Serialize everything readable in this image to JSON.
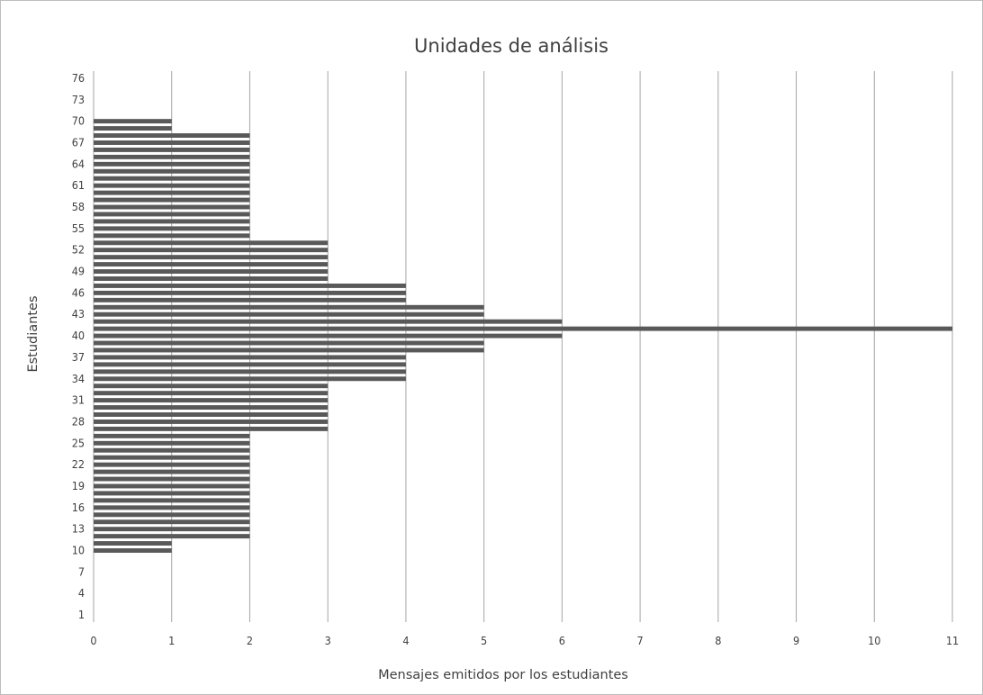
{
  "chart_data": {
    "type": "bar",
    "orientation": "horizontal",
    "title": "Unidades de análisis",
    "xlabel": "Mensajes emitidos por los estudiantes",
    "ylabel": "Estudiantes",
    "xlim": [
      0,
      11
    ],
    "ylim": [
      0,
      77
    ],
    "x_ticks": [
      "0",
      "1",
      "2",
      "3",
      "4",
      "5",
      "6",
      "7",
      "8",
      "9",
      "10",
      "11"
    ],
    "y_ticks": [
      "1",
      "4",
      "7",
      "10",
      "13",
      "16",
      "19",
      "22",
      "25",
      "28",
      "31",
      "34",
      "37",
      "40",
      "43",
      "46",
      "49",
      "52",
      "55",
      "58",
      "61",
      "64",
      "67",
      "70",
      "73",
      "76"
    ],
    "grid": "vertical",
    "legend": "none",
    "bar_color": "#595959",
    "grid_color": "#a6a6a6",
    "categories": [
      10,
      11,
      12,
      13,
      14,
      15,
      16,
      17,
      18,
      19,
      20,
      21,
      22,
      23,
      24,
      25,
      26,
      27,
      28,
      29,
      30,
      31,
      32,
      33,
      34,
      35,
      36,
      37,
      38,
      39,
      40,
      41,
      42,
      43,
      44,
      45,
      46,
      47,
      48,
      49,
      50,
      51,
      52,
      53,
      54,
      55,
      56,
      57,
      58,
      59,
      60,
      61,
      62,
      63,
      64,
      65,
      66,
      67,
      68,
      69,
      70
    ],
    "values": [
      1,
      1,
      2,
      2,
      2,
      2,
      2,
      2,
      2,
      2,
      2,
      2,
      2,
      2,
      2,
      2,
      2,
      3,
      3,
      3,
      3,
      3,
      3,
      3,
      4,
      4,
      4,
      4,
      5,
      5,
      6,
      11,
      6,
      5,
      5,
      4,
      4,
      4,
      3,
      3,
      3,
      3,
      3,
      3,
      2,
      2,
      2,
      2,
      2,
      2,
      2,
      2,
      2,
      2,
      2,
      2,
      2,
      2,
      2,
      1,
      1
    ]
  }
}
